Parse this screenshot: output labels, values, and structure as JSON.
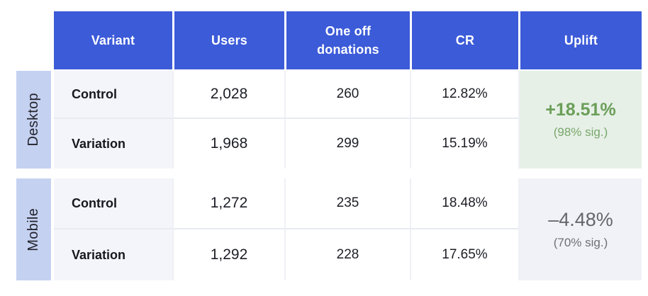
{
  "chart_data": {
    "type": "table",
    "columns": [
      "Variant",
      "Users",
      "One off donations",
      "CR",
      "Uplift"
    ],
    "row_groups": [
      {
        "group": "Desktop",
        "rows": [
          {
            "variant": "Control",
            "users": 2028,
            "one_off_donations": 260,
            "cr": "12.82%"
          },
          {
            "variant": "Variation",
            "users": 1968,
            "one_off_donations": 299,
            "cr": "15.19%"
          }
        ],
        "uplift": "+18.51%",
        "significance": "98% sig."
      },
      {
        "group": "Mobile",
        "rows": [
          {
            "variant": "Control",
            "users": 1272,
            "one_off_donations": 235,
            "cr": "18.48%"
          },
          {
            "variant": "Variation",
            "users": 1292,
            "one_off_donations": 228,
            "cr": "17.65%"
          }
        ],
        "uplift": "-4.48%",
        "significance": "70% sig."
      }
    ]
  },
  "header": {
    "variant": "Variant",
    "users": "Users",
    "donations": "One off donations",
    "cr": "CR",
    "uplift": "Uplift"
  },
  "sections": [
    {
      "label": "Desktop",
      "rows": [
        {
          "variant": "Control",
          "users": "2,028",
          "donations": "260",
          "cr": "12.82%"
        },
        {
          "variant": "Variation",
          "users": "1,968",
          "donations": "299",
          "cr": "15.19%"
        }
      ],
      "uplift_value": "+18.51%",
      "uplift_significance": "(98% sig.)"
    },
    {
      "label": "Mobile",
      "rows": [
        {
          "variant": "Control",
          "users": "1,272",
          "donations": "235",
          "cr": "18.48%"
        },
        {
          "variant": "Variation",
          "users": "1,292",
          "donations": "228",
          "cr": "17.65%"
        }
      ],
      "uplift_value": "–4.48%",
      "uplift_significance": "(70% sig.)"
    }
  ],
  "colors": {
    "header_bg": "#3c5bd8",
    "header_text": "#ffffff",
    "group_label_bg": "#c5d1f1",
    "variant_cell_bg": "#f4f5fa",
    "data_cell_bg": "#ffffff",
    "uplift_positive_bg": "#e6f0e7",
    "uplift_positive_text": "#6b9e58",
    "uplift_negative_bg": "#f1f2f7",
    "uplift_negative_text": "#63666d"
  }
}
